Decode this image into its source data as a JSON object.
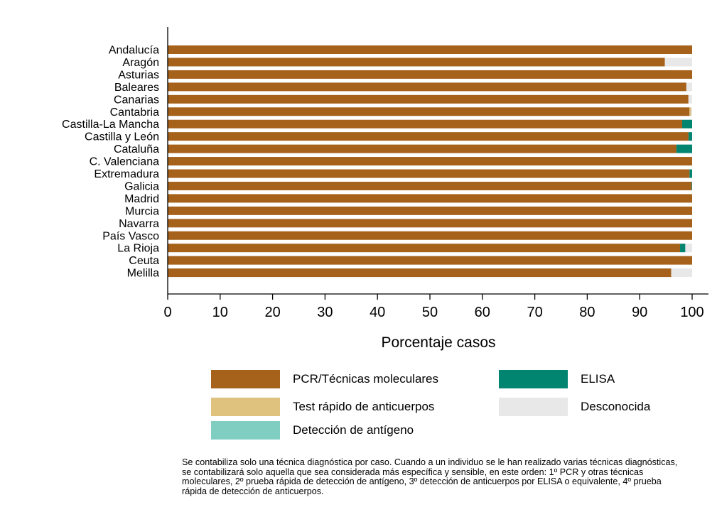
{
  "chart_data": {
    "type": "bar",
    "orientation": "horizontal",
    "stacked": true,
    "xlabel": "Porcentaje casos",
    "xlim": [
      0,
      100
    ],
    "xticks": [
      "0",
      "10",
      "20",
      "30",
      "40",
      "50",
      "60",
      "70",
      "80",
      "90",
      "100"
    ],
    "categories": [
      "Andalucía",
      "Aragón",
      "Asturias",
      "Baleares",
      "Canarias",
      "Cantabria",
      "Castilla-La Mancha",
      "Castilla y León",
      "Cataluña",
      "C. Valenciana",
      "Extremadura",
      "Galicia",
      "Madrid",
      "Murcia",
      "Navarra",
      "País Vasco",
      "La Rioja",
      "Ceuta",
      "Melilla"
    ],
    "series": [
      {
        "name": "PCR/Técnicas moleculares",
        "color": "#A6611A",
        "values": [
          100,
          94.8,
          100,
          98.9,
          99.3,
          99.5,
          98.1,
          99.3,
          97.0,
          100,
          99.5,
          99.9,
          100,
          100,
          100,
          100,
          97.7,
          100,
          96.0
        ]
      },
      {
        "name": "Test rápido de anticuerpos",
        "color": "#DFC27D",
        "values": [
          0,
          0,
          0,
          0,
          0,
          0.3,
          0,
          0,
          0,
          0,
          0,
          0,
          0,
          0,
          0,
          0,
          0,
          0,
          0
        ]
      },
      {
        "name": "Detección de antígeno",
        "color": "#80CDC1",
        "values": [
          0,
          0,
          0,
          0,
          0,
          0,
          0,
          0,
          0,
          0,
          0,
          0,
          0,
          0,
          0,
          0,
          0,
          0,
          0
        ]
      },
      {
        "name": "ELISA",
        "color": "#018571",
        "values": [
          0,
          0,
          0,
          0,
          0,
          0,
          1.9,
          0.7,
          3.0,
          0,
          0.5,
          0.1,
          0,
          0,
          0,
          0,
          1.0,
          0,
          0
        ]
      },
      {
        "name": "Desconocida",
        "color": "#E8E8E8",
        "values": [
          0,
          5.2,
          0,
          1.1,
          0.7,
          0.2,
          0,
          0,
          0,
          0,
          0,
          0,
          0,
          0,
          0,
          0,
          1.3,
          0,
          4.0
        ]
      }
    ],
    "legend_position": "bottom",
    "grid": false
  },
  "footnote": "Se contabiliza solo una técnica diagnóstica por caso. Cuando a un individuo se le han realizado varias técnicas diagnósticas, se contabilizará solo aquella que sea considerada más específica y sensible, en este orden: 1º PCR y otras técnicas moleculares, 2º prueba rápida de detección de antígeno, 3º detección de anticuerpos por ELISA o equivalente, 4º prueba rápida de detección de anticuerpos."
}
